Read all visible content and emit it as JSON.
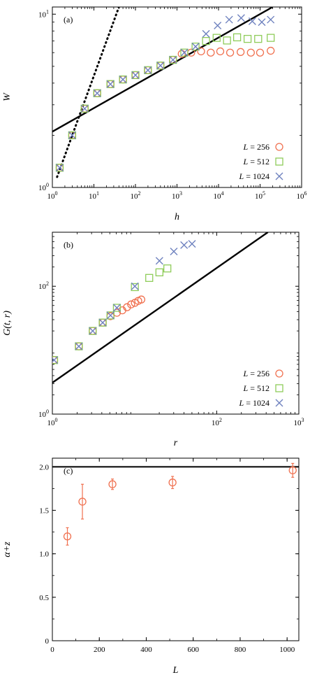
{
  "colors": {
    "series_256": "#f07150",
    "series_512": "#8fcc5a",
    "series_1024": "#6f82bf",
    "fit": "#000000"
  },
  "chart_data": [
    {
      "type": "scatter",
      "panel_label": "(a)",
      "xlabel": "h",
      "ylabel": "W",
      "xscale": "log",
      "yscale": "log",
      "xlim": [
        1,
        1000000
      ],
      "ylim": [
        1,
        11
      ],
      "grid": false,
      "legend_position": "bottom-right",
      "xticks": [
        {
          "value": 1,
          "base": "10",
          "exp": "0"
        },
        {
          "value": 10,
          "base": "10",
          "exp": "1"
        },
        {
          "value": 100,
          "base": "10",
          "exp": "2"
        },
        {
          "value": 1000,
          "base": "10",
          "exp": "3"
        },
        {
          "value": 10000,
          "base": "10",
          "exp": "4"
        },
        {
          "value": 100000,
          "base": "10",
          "exp": "5"
        },
        {
          "value": 1000000,
          "base": "10",
          "exp": "6"
        }
      ],
      "yticks": [
        {
          "value": 1,
          "base": "10",
          "exp": "0"
        },
        {
          "value": 10,
          "base": "10",
          "exp": "1"
        }
      ],
      "series": [
        {
          "name": "L = 256",
          "marker": "circle",
          "color_key": "series_256",
          "x": [
            1.5,
            3,
            6,
            12,
            25,
            50,
            100,
            200,
            400,
            800,
            1300,
            2200,
            3800,
            6500,
            11000,
            19000,
            34000,
            60000,
            100000,
            180000
          ],
          "y": [
            1.3,
            2.0,
            2.85,
            3.5,
            3.95,
            4.2,
            4.45,
            4.75,
            5.05,
            5.45,
            5.9,
            6.0,
            6.1,
            6.0,
            6.1,
            6.0,
            6.05,
            6.0,
            6.0,
            6.15
          ]
        },
        {
          "name": "L = 512",
          "marker": "square",
          "color_key": "series_512",
          "x": [
            1.5,
            3,
            6,
            12,
            25,
            50,
            100,
            200,
            400,
            800,
            1500,
            2800,
            5000,
            9000,
            16000,
            28000,
            50000,
            90000,
            180000
          ],
          "y": [
            1.3,
            2.0,
            2.85,
            3.5,
            3.95,
            4.2,
            4.45,
            4.75,
            5.05,
            5.45,
            6.0,
            6.5,
            7.0,
            7.3,
            7.05,
            7.35,
            7.2,
            7.2,
            7.3
          ]
        },
        {
          "name": "L = 1024",
          "marker": "cross",
          "color_key": "series_1024",
          "x": [
            1.5,
            3,
            6,
            12,
            25,
            50,
            100,
            200,
            400,
            800,
            1500,
            2800,
            5000,
            9500,
            18000,
            35000,
            65000,
            110000,
            180000
          ],
          "y": [
            1.3,
            2.0,
            2.85,
            3.5,
            3.95,
            4.2,
            4.45,
            4.75,
            5.05,
            5.45,
            6.0,
            6.5,
            7.7,
            8.6,
            9.3,
            9.5,
            9.1,
            9.0,
            9.3
          ]
        }
      ],
      "fit_lines": [
        {
          "style": "solid",
          "x": [
            1,
            200000
          ],
          "y": [
            2.1,
            11
          ]
        },
        {
          "style": "dotted",
          "x": [
            1.3,
            40
          ],
          "y": [
            1.15,
            11
          ]
        }
      ]
    },
    {
      "type": "scatter",
      "panel_label": "(b)",
      "xlabel": "r",
      "ylabel": "G(t, r)",
      "xscale": "log",
      "yscale": "log",
      "xlim": [
        1,
        1000
      ],
      "ylim": [
        1,
        700
      ],
      "grid": false,
      "legend_position": "bottom-right",
      "xticks": [
        {
          "value": 1,
          "base": "10",
          "exp": "0"
        },
        {
          "value": 100,
          "base": "10",
          "exp": "2"
        },
        {
          "value": 1000,
          "base": "10",
          "exp": "3"
        }
      ],
      "yticks": [
        {
          "value": 1,
          "base": "10",
          "exp": "0"
        },
        {
          "value": 100,
          "base": "10",
          "exp": "2"
        }
      ],
      "series": [
        {
          "name": "L = 256",
          "marker": "circle",
          "color_key": "series_256",
          "x": [
            1.05,
            2.1,
            3.1,
            4.1,
            5.1,
            6.1,
            7.1,
            8.1,
            9.1,
            10.1,
            11.1,
            12.1
          ],
          "y": [
            7,
            11.5,
            20,
            27,
            34,
            38.5,
            42,
            47,
            52,
            55,
            59,
            62
          ]
        },
        {
          "name": "L = 512",
          "marker": "square",
          "color_key": "series_512",
          "x": [
            1.05,
            2.1,
            3.1,
            4.1,
            5.1,
            6.1,
            10.1,
            15.1,
            20.1,
            25.1
          ],
          "y": [
            7,
            11.5,
            20,
            27,
            35,
            46,
            97,
            135,
            165,
            190
          ]
        },
        {
          "name": "L = 1024",
          "marker": "cross",
          "color_key": "series_1024",
          "x": [
            1.05,
            2.1,
            3.1,
            4.1,
            5.1,
            6.1,
            10.1,
            20.1,
            30.1,
            40.1,
            50.1
          ],
          "y": [
            7,
            11.5,
            20,
            27,
            35,
            46,
            100,
            250,
            350,
            440,
            460
          ]
        }
      ],
      "fit_lines": [
        {
          "style": "solid",
          "x": [
            1,
            420
          ],
          "y": [
            3.1,
            700
          ]
        }
      ]
    },
    {
      "type": "scatter",
      "panel_label": "(c)",
      "xlabel": "L",
      "ylabel": "α+z",
      "xscale": "linear",
      "yscale": "linear",
      "xlim": [
        0,
        1050
      ],
      "ylim": [
        0,
        2.1
      ],
      "grid": false,
      "xticks": [
        {
          "value": 0,
          "label": "0"
        },
        {
          "value": 200,
          "label": "200"
        },
        {
          "value": 400,
          "label": "400"
        },
        {
          "value": 600,
          "label": "600"
        },
        {
          "value": 800,
          "label": "800"
        },
        {
          "value": 1000,
          "label": "1000"
        }
      ],
      "yticks": [
        {
          "value": 0,
          "label": "0"
        },
        {
          "value": 0.5,
          "label": "0.5"
        },
        {
          "value": 1,
          "label": "1.0"
        },
        {
          "value": 1.5,
          "label": "1.5"
        },
        {
          "value": 2,
          "label": "2.0"
        }
      ],
      "series": [
        {
          "marker": "circle",
          "color_key": "series_256",
          "x": [
            64,
            128,
            256,
            512,
            1024
          ],
          "y": [
            1.2,
            1.6,
            1.8,
            1.82,
            1.96
          ],
          "yerr": [
            0.1,
            0.2,
            0.06,
            0.07,
            0.08
          ]
        }
      ],
      "hlines": [
        {
          "y": 2.0,
          "style": "solid"
        }
      ]
    }
  ]
}
